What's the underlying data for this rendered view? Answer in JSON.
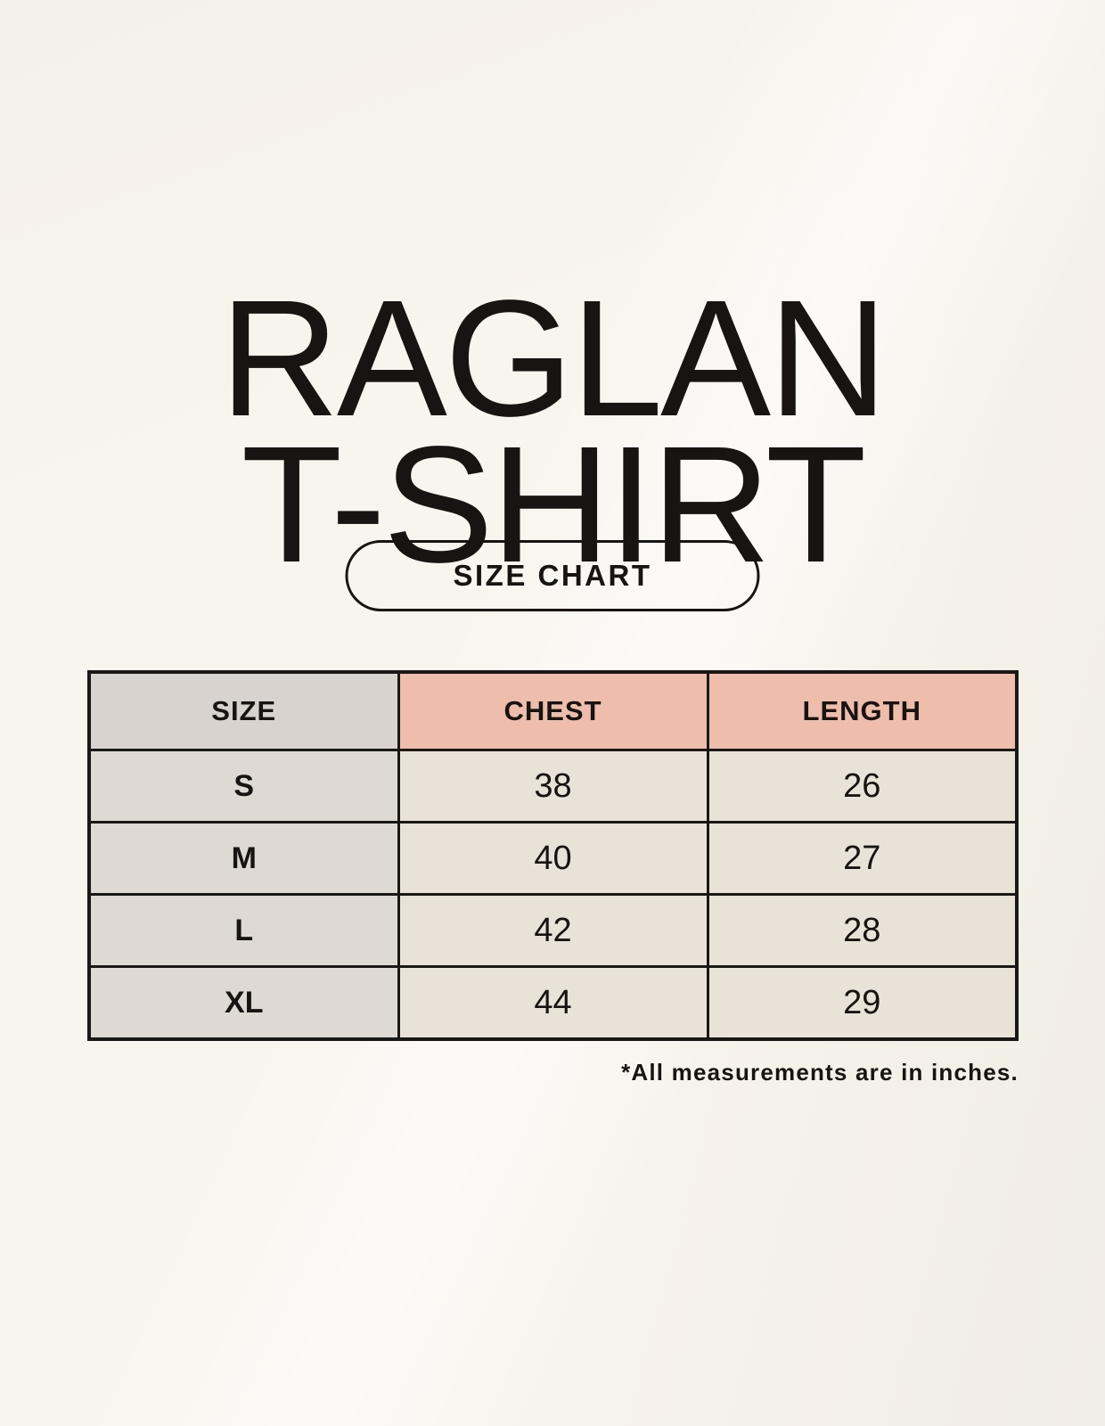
{
  "theme": {
    "bg": "#f8f5ee",
    "ink": "#171411",
    "line": "#1a1816",
    "pink": "#eebdac",
    "gray_head": "#d8d3ce",
    "gray_cell": "#ded9d3",
    "beige": "#e9e3d7"
  },
  "title": {
    "line1": "RAGLAN",
    "line2": "T-SHIRT"
  },
  "size_chart_button": {
    "label": "SIZE CHART"
  },
  "table": {
    "columns": [
      "SIZE",
      "CHEST",
      "LENGTH"
    ],
    "rows": [
      {
        "size": "S",
        "chest": "38",
        "length": "26"
      },
      {
        "size": "M",
        "chest": "40",
        "length": "27"
      },
      {
        "size": "L",
        "chest": "42",
        "length": "28"
      },
      {
        "size": "XL",
        "chest": "44",
        "length": "29"
      }
    ]
  },
  "footnote": "*All measurements are in inches."
}
